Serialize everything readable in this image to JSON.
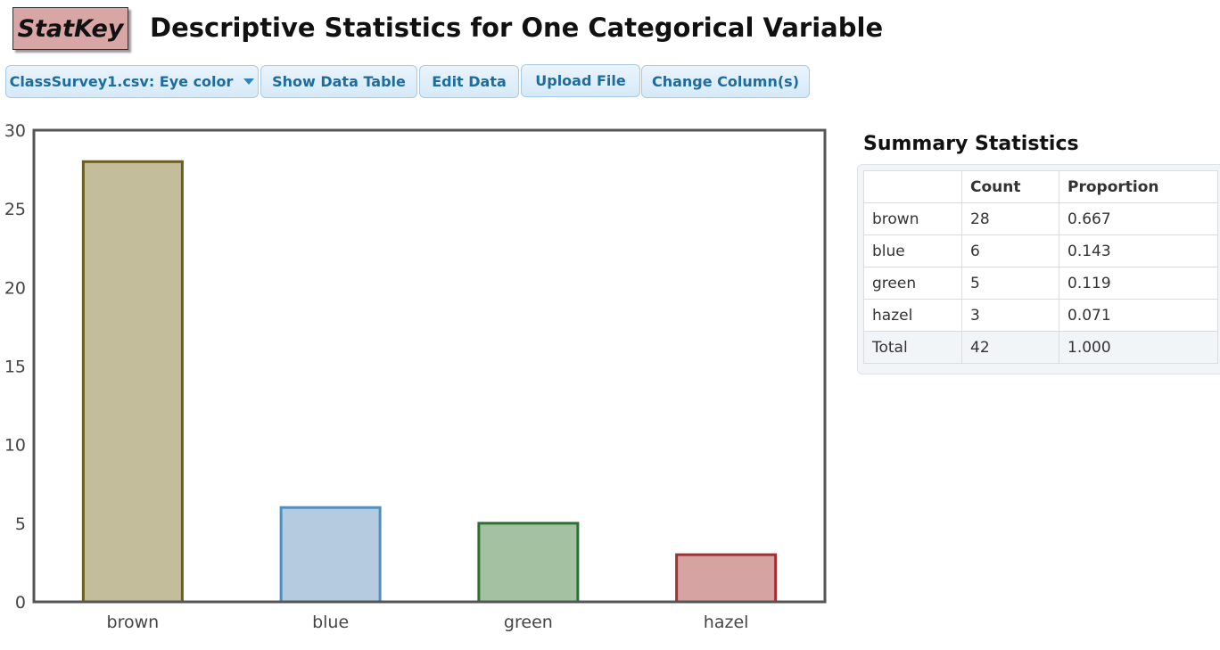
{
  "header": {
    "logo_text": "StatKey",
    "title": "Descriptive Statistics for One Categorical Variable"
  },
  "toolbar": {
    "dataset_label": "ClassSurvey1.csv: Eye color",
    "show_table_label": "Show Data Table",
    "edit_data_label": "Edit Data",
    "upload_label": "Upload File",
    "change_columns_label": "Change Column(s)"
  },
  "chart_data": {
    "type": "bar",
    "categories": [
      "brown",
      "blue",
      "green",
      "hazel"
    ],
    "values": [
      28,
      6,
      5,
      3
    ],
    "ylim": [
      0,
      30
    ],
    "yticks": [
      0,
      5,
      10,
      15,
      20,
      25,
      30
    ],
    "colors": [
      {
        "fill": "#c4bd9b",
        "stroke": "#6b5e1f"
      },
      {
        "fill": "#b5cce0",
        "stroke": "#4f8fc0"
      },
      {
        "fill": "#a4c2a2",
        "stroke": "#2c7031"
      },
      {
        "fill": "#d6a3a3",
        "stroke": "#a33030"
      }
    ],
    "grid": false
  },
  "summary": {
    "title": "Summary Statistics",
    "headers": [
      "",
      "Count",
      "Proportion"
    ],
    "rows": [
      [
        "brown",
        "28",
        "0.667"
      ],
      [
        "blue",
        "6",
        "0.143"
      ],
      [
        "green",
        "5",
        "0.119"
      ],
      [
        "hazel",
        "3",
        "0.071"
      ],
      [
        "Total",
        "42",
        "1.000"
      ]
    ]
  }
}
